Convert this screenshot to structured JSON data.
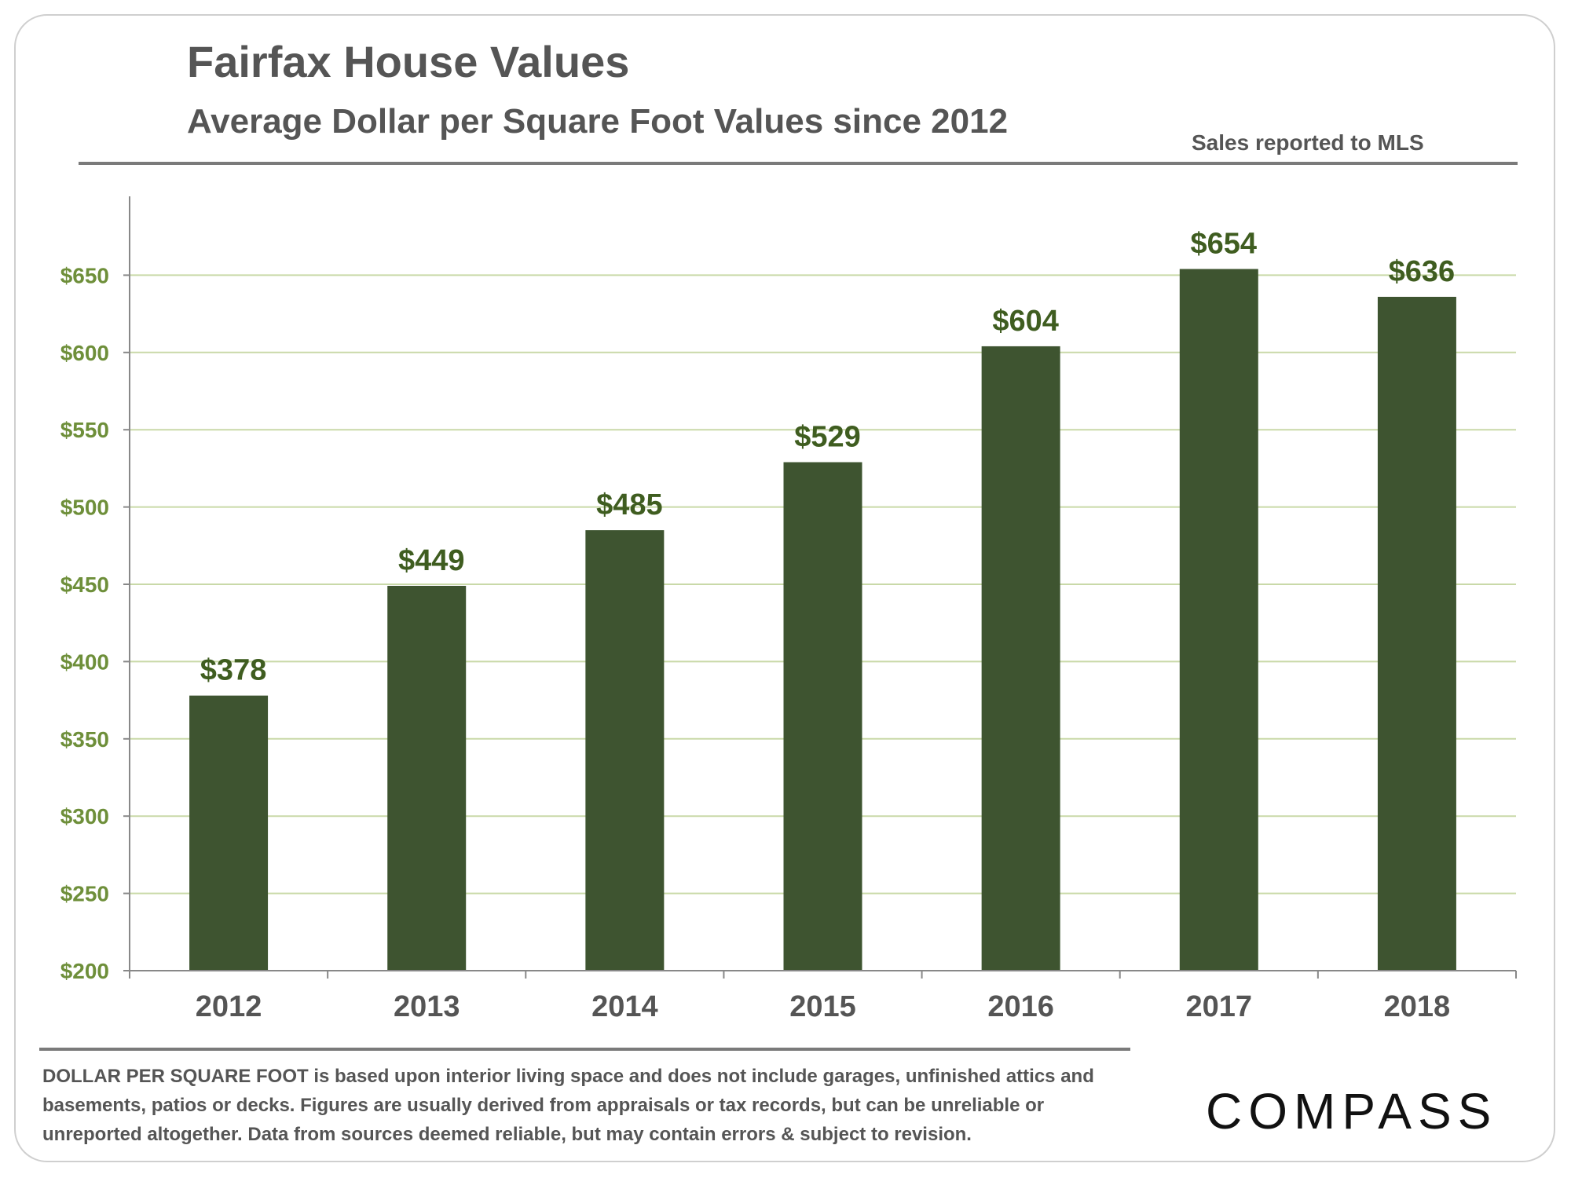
{
  "header": {
    "title": "Fairfax House Values",
    "subtitle": "Average Dollar per Square Foot Values since 2012",
    "source": "Sales reported to MLS"
  },
  "footer": {
    "note_lead": "DOLLAR PER SQUARE FOOT",
    "note_body": " is based upon interior living space and does not include garages, unfinished attics and basements, patios or decks. Figures are usually derived from appraisals or tax records, but can be unreliable or unreported altogether. Data from sources deemed reliable, but may contain errors & subject to revision.",
    "logo_text": "COMPASS"
  },
  "colors": {
    "bar": "#3e5430",
    "gridline": "#c9d9a8",
    "axis": "#888888"
  },
  "chart_data": {
    "type": "bar",
    "title": "Fairfax House Values",
    "subtitle": "Average Dollar per Square Foot Values since 2012",
    "xlabel": "",
    "ylabel": "",
    "categories": [
      "2012",
      "2013",
      "2014",
      "2015",
      "2016",
      "2017",
      "2018"
    ],
    "values": [
      378,
      449,
      485,
      529,
      604,
      654,
      636
    ],
    "data_labels": [
      "$378",
      "$449",
      "$485",
      "$529",
      "$604",
      "$654",
      "$636"
    ],
    "ylim": [
      200,
      700
    ],
    "yticks": [
      200,
      250,
      300,
      350,
      400,
      450,
      500,
      550,
      600,
      650
    ],
    "ytick_labels": [
      "$200",
      "$250",
      "$300",
      "$350",
      "$400",
      "$450",
      "$500",
      "$550",
      "$600",
      "$650"
    ],
    "grid": true,
    "legend": "none"
  }
}
